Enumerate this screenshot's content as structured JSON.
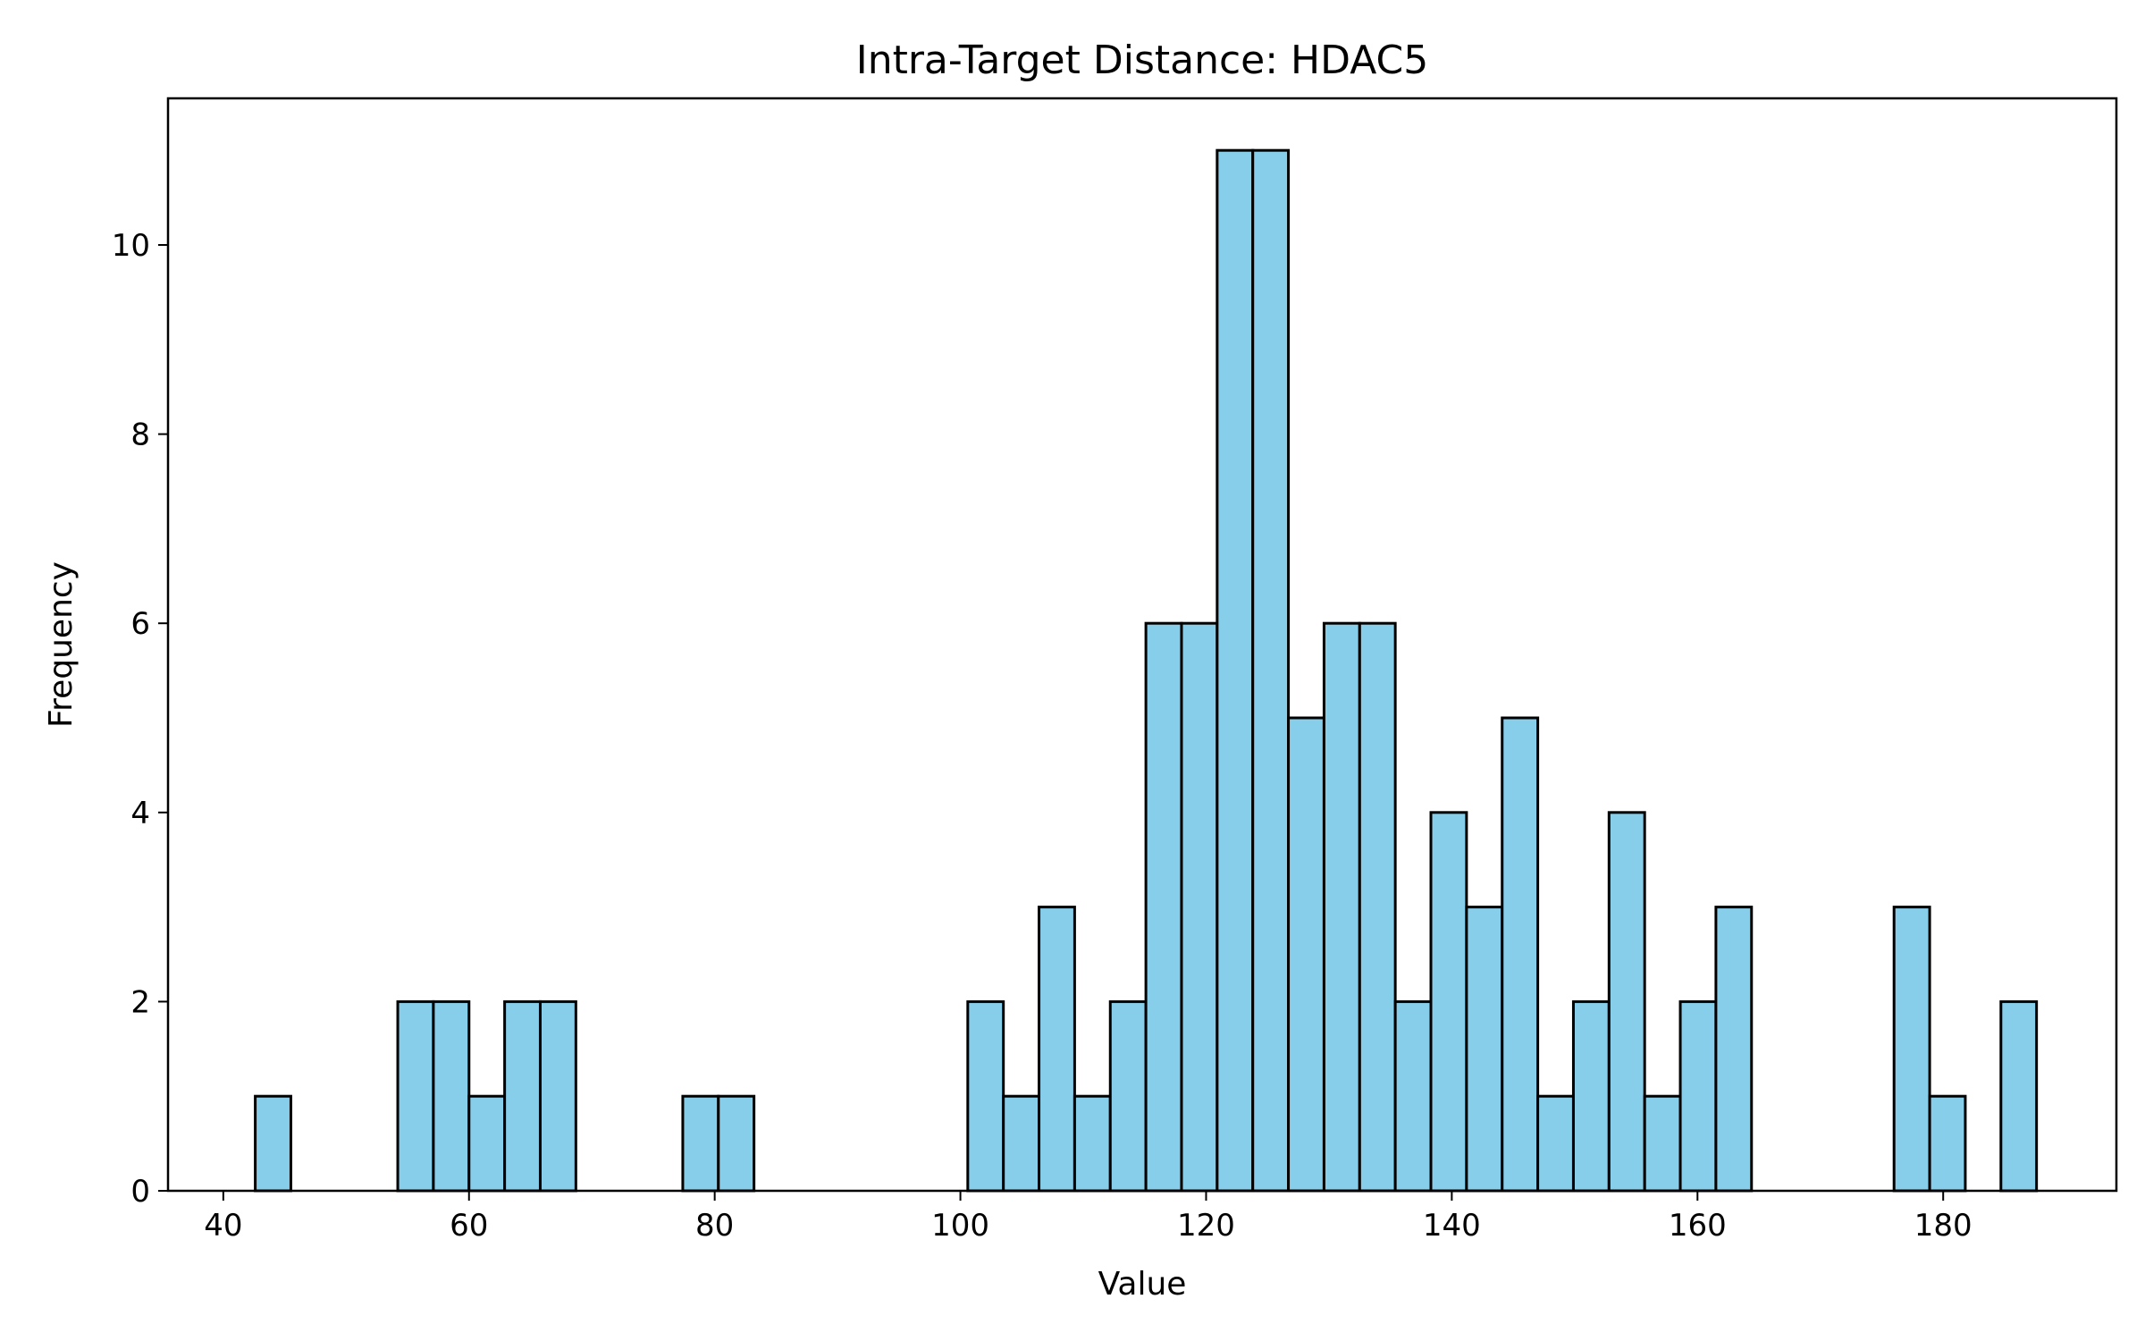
{
  "chart_data": {
    "type": "bar",
    "title": "Intra-Target Distance: HDAC5",
    "xlabel": "Value",
    "ylabel": "Frequency",
    "xlim": [
      35.5,
      194.1
    ],
    "ylim": [
      0,
      11.55
    ],
    "x_ticks": [
      40,
      60,
      80,
      100,
      120,
      140,
      160,
      180
    ],
    "y_ticks": [
      0,
      2,
      4,
      6,
      8,
      10
    ],
    "bin_start": 42.6,
    "bin_width": 2.9,
    "values": [
      1,
      0,
      0,
      0,
      2,
      2,
      1,
      2,
      2,
      0,
      0,
      0,
      1,
      1,
      0,
      0,
      0,
      0,
      0,
      0,
      2,
      1,
      3,
      1,
      2,
      6,
      6,
      11,
      11,
      5,
      6,
      6,
      2,
      4,
      3,
      5,
      1,
      2,
      4,
      1,
      2,
      3,
      0,
      0,
      0,
      0,
      3,
      1,
      0,
      2
    ],
    "bar_color": "#87CEEB",
    "edge_color": "#000000",
    "grid": false,
    "legend": "none"
  }
}
